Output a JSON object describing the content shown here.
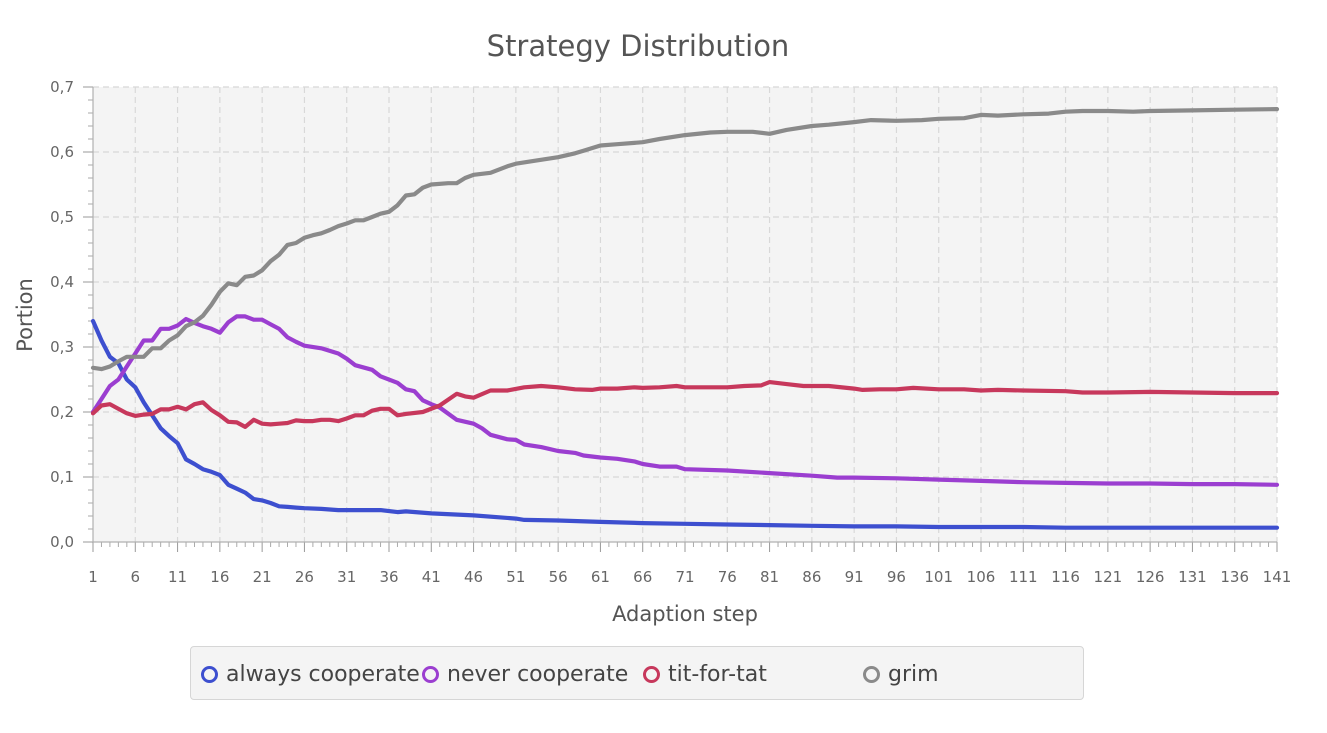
{
  "chart_data": {
    "type": "line",
    "title": "Strategy Distribution",
    "xlabel": "Adaption step",
    "ylabel": "Portion",
    "xlim": [
      1,
      141
    ],
    "ylim": [
      0,
      0.7
    ],
    "x_tick_labels": [
      "1",
      "6",
      "11",
      "16",
      "21",
      "26",
      "31",
      "36",
      "41",
      "46",
      "51",
      "56",
      "61",
      "66",
      "71",
      "76",
      "81",
      "86",
      "91",
      "96",
      "101",
      "106",
      "111",
      "116",
      "121",
      "126",
      "131",
      "136",
      "141"
    ],
    "y_tick_labels": [
      "0,0",
      "0,1",
      "0,2",
      "0,3",
      "0,4",
      "0,5",
      "0,6",
      "0,7"
    ],
    "y_ticks": [
      0,
      0.1,
      0.2,
      0.3,
      0.4,
      0.5,
      0.6,
      0.7
    ],
    "grid": true,
    "legend_position": "bottom",
    "series": [
      {
        "name": "always cooperate",
        "color": "#3d4fcf",
        "points": [
          [
            1,
            0.34
          ],
          [
            2,
            0.31
          ],
          [
            3,
            0.285
          ],
          [
            4,
            0.275
          ],
          [
            5,
            0.25
          ],
          [
            6,
            0.238
          ],
          [
            7,
            0.215
          ],
          [
            8,
            0.195
          ],
          [
            9,
            0.175
          ],
          [
            10,
            0.163
          ],
          [
            11,
            0.152
          ],
          [
            12,
            0.127
          ],
          [
            13,
            0.12
          ],
          [
            14,
            0.112
          ],
          [
            15,
            0.108
          ],
          [
            16,
            0.103
          ],
          [
            17,
            0.088
          ],
          [
            18,
            0.082
          ],
          [
            19,
            0.076
          ],
          [
            20,
            0.066
          ],
          [
            21,
            0.064
          ],
          [
            22,
            0.06
          ],
          [
            23,
            0.055
          ],
          [
            24,
            0.054
          ],
          [
            25,
            0.053
          ],
          [
            26,
            0.052
          ],
          [
            28,
            0.051
          ],
          [
            30,
            0.049
          ],
          [
            32,
            0.049
          ],
          [
            35,
            0.049
          ],
          [
            37,
            0.046
          ],
          [
            38,
            0.047
          ],
          [
            41,
            0.044
          ],
          [
            46,
            0.041
          ],
          [
            51,
            0.036
          ],
          [
            52,
            0.034
          ],
          [
            56,
            0.033
          ],
          [
            61,
            0.031
          ],
          [
            66,
            0.029
          ],
          [
            71,
            0.028
          ],
          [
            76,
            0.027
          ],
          [
            81,
            0.026
          ],
          [
            86,
            0.025
          ],
          [
            91,
            0.024
          ],
          [
            96,
            0.024
          ],
          [
            101,
            0.023
          ],
          [
            106,
            0.023
          ],
          [
            111,
            0.023
          ],
          [
            116,
            0.022
          ],
          [
            121,
            0.022
          ],
          [
            131,
            0.022
          ],
          [
            141,
            0.022
          ]
        ]
      },
      {
        "name": "never cooperate",
        "color": "#9b3ed0",
        "points": [
          [
            1,
            0.2
          ],
          [
            2,
            0.22
          ],
          [
            3,
            0.24
          ],
          [
            4,
            0.25
          ],
          [
            5,
            0.27
          ],
          [
            6,
            0.29
          ],
          [
            7,
            0.31
          ],
          [
            8,
            0.31
          ],
          [
            9,
            0.328
          ],
          [
            10,
            0.328
          ],
          [
            11,
            0.333
          ],
          [
            12,
            0.343
          ],
          [
            13,
            0.337
          ],
          [
            14,
            0.332
          ],
          [
            15,
            0.328
          ],
          [
            16,
            0.322
          ],
          [
            17,
            0.338
          ],
          [
            18,
            0.347
          ],
          [
            19,
            0.347
          ],
          [
            20,
            0.342
          ],
          [
            21,
            0.342
          ],
          [
            22,
            0.335
          ],
          [
            23,
            0.328
          ],
          [
            24,
            0.315
          ],
          [
            25,
            0.308
          ],
          [
            26,
            0.302
          ],
          [
            28,
            0.298
          ],
          [
            30,
            0.29
          ],
          [
            31,
            0.282
          ],
          [
            32,
            0.272
          ],
          [
            34,
            0.265
          ],
          [
            35,
            0.255
          ],
          [
            37,
            0.245
          ],
          [
            38,
            0.235
          ],
          [
            39,
            0.232
          ],
          [
            40,
            0.218
          ],
          [
            41,
            0.212
          ],
          [
            42,
            0.207
          ],
          [
            44,
            0.188
          ],
          [
            46,
            0.182
          ],
          [
            47,
            0.175
          ],
          [
            48,
            0.165
          ],
          [
            50,
            0.158
          ],
          [
            51,
            0.157
          ],
          [
            52,
            0.15
          ],
          [
            54,
            0.146
          ],
          [
            56,
            0.14
          ],
          [
            58,
            0.137
          ],
          [
            59,
            0.133
          ],
          [
            61,
            0.13
          ],
          [
            63,
            0.128
          ],
          [
            65,
            0.124
          ],
          [
            66,
            0.12
          ],
          [
            68,
            0.116
          ],
          [
            70,
            0.116
          ],
          [
            71,
            0.112
          ],
          [
            76,
            0.11
          ],
          [
            81,
            0.106
          ],
          [
            86,
            0.102
          ],
          [
            89,
            0.099
          ],
          [
            91,
            0.099
          ],
          [
            96,
            0.098
          ],
          [
            101,
            0.096
          ],
          [
            106,
            0.094
          ],
          [
            111,
            0.092
          ],
          [
            116,
            0.091
          ],
          [
            121,
            0.09
          ],
          [
            126,
            0.09
          ],
          [
            131,
            0.089
          ],
          [
            136,
            0.089
          ],
          [
            141,
            0.088
          ]
        ]
      },
      {
        "name": "tit-for-tat",
        "color": "#c7385c",
        "points": [
          [
            1,
            0.198
          ],
          [
            2,
            0.21
          ],
          [
            3,
            0.212
          ],
          [
            4,
            0.205
          ],
          [
            5,
            0.198
          ],
          [
            6,
            0.194
          ],
          [
            7,
            0.196
          ],
          [
            8,
            0.197
          ],
          [
            9,
            0.204
          ],
          [
            10,
            0.204
          ],
          [
            11,
            0.208
          ],
          [
            12,
            0.204
          ],
          [
            13,
            0.212
          ],
          [
            14,
            0.215
          ],
          [
            15,
            0.203
          ],
          [
            16,
            0.195
          ],
          [
            17,
            0.185
          ],
          [
            18,
            0.184
          ],
          [
            19,
            0.177
          ],
          [
            20,
            0.188
          ],
          [
            21,
            0.182
          ],
          [
            22,
            0.181
          ],
          [
            23,
            0.182
          ],
          [
            24,
            0.183
          ],
          [
            25,
            0.187
          ],
          [
            26,
            0.186
          ],
          [
            27,
            0.186
          ],
          [
            28,
            0.188
          ],
          [
            29,
            0.188
          ],
          [
            30,
            0.186
          ],
          [
            31,
            0.19
          ],
          [
            32,
            0.195
          ],
          [
            33,
            0.195
          ],
          [
            34,
            0.202
          ],
          [
            35,
            0.205
          ],
          [
            36,
            0.205
          ],
          [
            37,
            0.195
          ],
          [
            38,
            0.197
          ],
          [
            40,
            0.2
          ],
          [
            42,
            0.21
          ],
          [
            44,
            0.228
          ],
          [
            45,
            0.224
          ],
          [
            46,
            0.222
          ],
          [
            48,
            0.233
          ],
          [
            50,
            0.233
          ],
          [
            52,
            0.238
          ],
          [
            54,
            0.24
          ],
          [
            56,
            0.238
          ],
          [
            58,
            0.235
          ],
          [
            60,
            0.234
          ],
          [
            61,
            0.236
          ],
          [
            63,
            0.236
          ],
          [
            65,
            0.238
          ],
          [
            66,
            0.237
          ],
          [
            68,
            0.238
          ],
          [
            70,
            0.24
          ],
          [
            71,
            0.238
          ],
          [
            73,
            0.238
          ],
          [
            76,
            0.238
          ],
          [
            78,
            0.24
          ],
          [
            80,
            0.241
          ],
          [
            81,
            0.246
          ],
          [
            83,
            0.243
          ],
          [
            85,
            0.24
          ],
          [
            86,
            0.24
          ],
          [
            88,
            0.24
          ],
          [
            91,
            0.236
          ],
          [
            92,
            0.234
          ],
          [
            94,
            0.235
          ],
          [
            96,
            0.235
          ],
          [
            98,
            0.237
          ],
          [
            101,
            0.235
          ],
          [
            104,
            0.235
          ],
          [
            106,
            0.233
          ],
          [
            108,
            0.234
          ],
          [
            111,
            0.233
          ],
          [
            116,
            0.232
          ],
          [
            118,
            0.23
          ],
          [
            121,
            0.23
          ],
          [
            126,
            0.231
          ],
          [
            131,
            0.23
          ],
          [
            136,
            0.229
          ],
          [
            141,
            0.229
          ]
        ]
      },
      {
        "name": "grim",
        "color": "#8a8a8a",
        "points": [
          [
            1,
            0.268
          ],
          [
            2,
            0.266
          ],
          [
            3,
            0.27
          ],
          [
            4,
            0.278
          ],
          [
            5,
            0.285
          ],
          [
            6,
            0.285
          ],
          [
            7,
            0.285
          ],
          [
            8,
            0.298
          ],
          [
            9,
            0.298
          ],
          [
            10,
            0.31
          ],
          [
            11,
            0.318
          ],
          [
            12,
            0.332
          ],
          [
            13,
            0.338
          ],
          [
            14,
            0.348
          ],
          [
            15,
            0.365
          ],
          [
            16,
            0.385
          ],
          [
            17,
            0.398
          ],
          [
            18,
            0.395
          ],
          [
            19,
            0.408
          ],
          [
            20,
            0.41
          ],
          [
            21,
            0.418
          ],
          [
            22,
            0.432
          ],
          [
            23,
            0.442
          ],
          [
            24,
            0.457
          ],
          [
            25,
            0.46
          ],
          [
            26,
            0.468
          ],
          [
            27,
            0.472
          ],
          [
            28,
            0.475
          ],
          [
            29,
            0.48
          ],
          [
            30,
            0.486
          ],
          [
            31,
            0.49
          ],
          [
            32,
            0.495
          ],
          [
            33,
            0.495
          ],
          [
            34,
            0.5
          ],
          [
            35,
            0.505
          ],
          [
            36,
            0.508
          ],
          [
            37,
            0.518
          ],
          [
            38,
            0.533
          ],
          [
            39,
            0.535
          ],
          [
            40,
            0.545
          ],
          [
            41,
            0.55
          ],
          [
            43,
            0.552
          ],
          [
            44,
            0.552
          ],
          [
            45,
            0.56
          ],
          [
            46,
            0.565
          ],
          [
            48,
            0.568
          ],
          [
            50,
            0.578
          ],
          [
            51,
            0.582
          ],
          [
            53,
            0.586
          ],
          [
            56,
            0.592
          ],
          [
            58,
            0.598
          ],
          [
            59,
            0.602
          ],
          [
            61,
            0.61
          ],
          [
            63,
            0.612
          ],
          [
            66,
            0.615
          ],
          [
            68,
            0.62
          ],
          [
            71,
            0.626
          ],
          [
            74,
            0.63
          ],
          [
            76,
            0.631
          ],
          [
            79,
            0.631
          ],
          [
            81,
            0.628
          ],
          [
            83,
            0.634
          ],
          [
            86,
            0.64
          ],
          [
            88,
            0.642
          ],
          [
            91,
            0.646
          ],
          [
            93,
            0.649
          ],
          [
            96,
            0.648
          ],
          [
            99,
            0.649
          ],
          [
            101,
            0.651
          ],
          [
            104,
            0.652
          ],
          [
            106,
            0.657
          ],
          [
            108,
            0.656
          ],
          [
            111,
            0.658
          ],
          [
            114,
            0.659
          ],
          [
            116,
            0.662
          ],
          [
            118,
            0.663
          ],
          [
            121,
            0.663
          ],
          [
            124,
            0.662
          ],
          [
            126,
            0.663
          ],
          [
            131,
            0.664
          ],
          [
            136,
            0.665
          ],
          [
            141,
            0.666
          ]
        ]
      }
    ]
  }
}
